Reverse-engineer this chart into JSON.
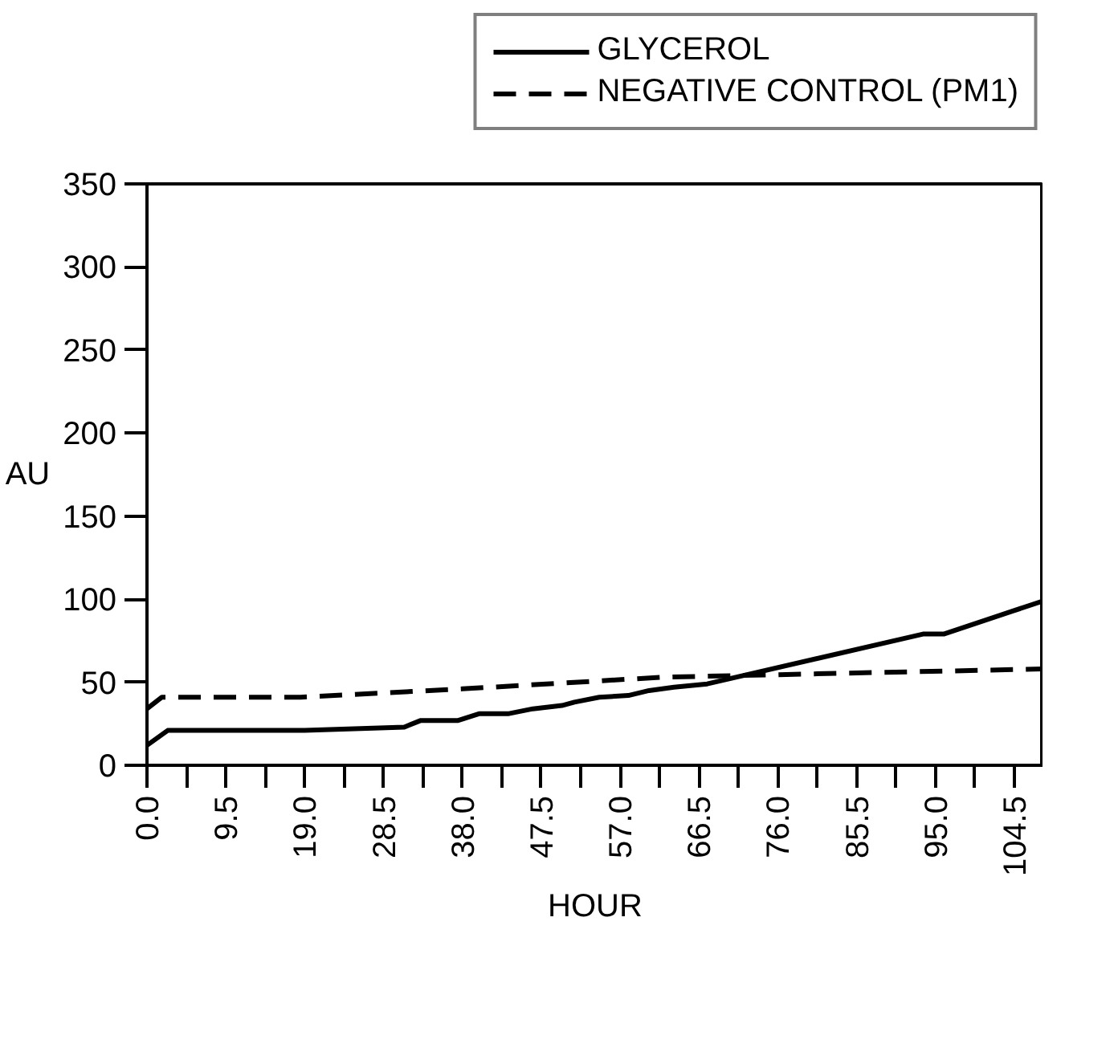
{
  "chart_data": {
    "type": "line",
    "xlabel": "HOUR",
    "ylabel": "AU",
    "xlim": [
      0,
      108
    ],
    "ylim": [
      0,
      350
    ],
    "xticks": [
      {
        "value": 0,
        "label": "0.0"
      },
      {
        "value": 4.75,
        "label": null
      },
      {
        "value": 9.5,
        "label": "9.5"
      },
      {
        "value": 14.25,
        "label": null
      },
      {
        "value": 19,
        "label": "19.0"
      },
      {
        "value": 23.75,
        "label": null
      },
      {
        "value": 28.5,
        "label": "28.5"
      },
      {
        "value": 33.25,
        "label": null
      },
      {
        "value": 38,
        "label": "38.0"
      },
      {
        "value": 42.75,
        "label": null
      },
      {
        "value": 47.5,
        "label": "47.5"
      },
      {
        "value": 52.25,
        "label": null
      },
      {
        "value": 57,
        "label": "57.0"
      },
      {
        "value": 61.75,
        "label": null
      },
      {
        "value": 66.5,
        "label": "66.5"
      },
      {
        "value": 71.25,
        "label": null
      },
      {
        "value": 76,
        "label": "76.0"
      },
      {
        "value": 80.75,
        "label": null
      },
      {
        "value": 85.5,
        "label": "85.5"
      },
      {
        "value": 90.25,
        "label": null
      },
      {
        "value": 95,
        "label": "95.0"
      },
      {
        "value": 99.75,
        "label": null
      },
      {
        "value": 104.5,
        "label": "104.5"
      }
    ],
    "yticks": [
      0,
      50,
      100,
      150,
      200,
      250,
      300,
      350
    ],
    "grid": false,
    "legend": "top right",
    "marker": "none",
    "series": [
      {
        "name": "GLYCEROL",
        "color": "#000000",
        "line_style": "solid",
        "x": [
          0,
          2.5,
          19,
          31,
          33,
          37.5,
          40,
          43.5,
          46.5,
          50,
          51.5,
          54.5,
          58,
          60.5,
          63.5,
          67.5,
          93.5,
          96,
          108
        ],
        "values": [
          12,
          21,
          21,
          23,
          27,
          27,
          31,
          31,
          34,
          36,
          38,
          41,
          42,
          45,
          47,
          49,
          79,
          79,
          99
        ]
      },
      {
        "name": "NEGATIVE CONTROL (PM1)",
        "color": "#000000",
        "line_style": "dashed",
        "x": [
          0,
          1.8,
          18.5,
          38,
          62,
          80,
          108
        ],
        "values": [
          34,
          41,
          41,
          46,
          53,
          55,
          58
        ]
      }
    ]
  }
}
